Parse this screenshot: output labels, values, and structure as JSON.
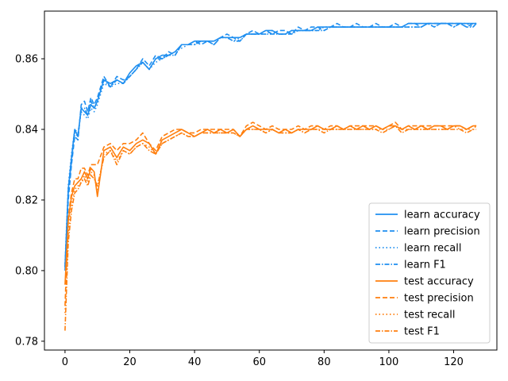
{
  "chart_data": {
    "type": "line",
    "title": "",
    "xlabel": "",
    "ylabel": "",
    "xlim": [
      -6.35,
      133.35
    ],
    "ylim": [
      0.7775,
      0.8735
    ],
    "xticks": [
      0,
      20,
      40,
      60,
      80,
      100,
      120
    ],
    "yticks": [
      0.78,
      0.8,
      0.82,
      0.84,
      0.86
    ],
    "ytick_labels": [
      "0.78",
      "0.80",
      "0.82",
      "0.84",
      "0.86"
    ],
    "grid": false,
    "legend_position": "lower-right",
    "colors": {
      "learn": "#1f8ff0",
      "test": "#ff7f0e"
    },
    "x": [
      0,
      1,
      2,
      3,
      4,
      5,
      6,
      7,
      8,
      9,
      10,
      12,
      14,
      16,
      18,
      20,
      22,
      24,
      26,
      28,
      30,
      32,
      34,
      36,
      38,
      40,
      42,
      44,
      46,
      48,
      50,
      52,
      54,
      56,
      58,
      60,
      62,
      64,
      66,
      68,
      70,
      72,
      74,
      76,
      78,
      80,
      82,
      84,
      86,
      88,
      90,
      92,
      94,
      96,
      98,
      100,
      102,
      104,
      106,
      108,
      110,
      112,
      114,
      116,
      118,
      120,
      122,
      124,
      126,
      127
    ],
    "series": [
      {
        "name": "learn accuracy",
        "color": "#1f8ff0",
        "dash": "solid",
        "values": [
          0.801,
          0.823,
          0.832,
          0.84,
          0.838,
          0.846,
          0.845,
          0.844,
          0.847,
          0.846,
          0.848,
          0.854,
          0.853,
          0.854,
          0.853,
          0.856,
          0.858,
          0.859,
          0.857,
          0.86,
          0.861,
          0.861,
          0.862,
          0.864,
          0.864,
          0.865,
          0.865,
          0.865,
          0.865,
          0.866,
          0.866,
          0.866,
          0.866,
          0.867,
          0.867,
          0.867,
          0.868,
          0.868,
          0.867,
          0.867,
          0.868,
          0.868,
          0.868,
          0.868,
          0.869,
          0.869,
          0.869,
          0.869,
          0.869,
          0.869,
          0.869,
          0.869,
          0.869,
          0.869,
          0.869,
          0.869,
          0.869,
          0.869,
          0.87,
          0.87,
          0.87,
          0.87,
          0.87,
          0.87,
          0.87,
          0.87,
          0.87,
          0.87,
          0.87,
          0.87
        ]
      },
      {
        "name": "learn precision",
        "color": "#1f8ff0",
        "dash": "6,3",
        "values": [
          0.8,
          0.82,
          0.83,
          0.838,
          0.837,
          0.847,
          0.848,
          0.845,
          0.849,
          0.847,
          0.849,
          0.855,
          0.852,
          0.855,
          0.854,
          0.855,
          0.857,
          0.86,
          0.858,
          0.861,
          0.86,
          0.862,
          0.861,
          0.864,
          0.864,
          0.865,
          0.864,
          0.865,
          0.864,
          0.866,
          0.867,
          0.866,
          0.865,
          0.867,
          0.868,
          0.867,
          0.868,
          0.867,
          0.868,
          0.868,
          0.867,
          0.869,
          0.868,
          0.869,
          0.869,
          0.868,
          0.869,
          0.87,
          0.869,
          0.869,
          0.87,
          0.869,
          0.869,
          0.87,
          0.869,
          0.869,
          0.87,
          0.869,
          0.87,
          0.87,
          0.869,
          0.87,
          0.87,
          0.87,
          0.87,
          0.87,
          0.87,
          0.869,
          0.87,
          0.87
        ]
      },
      {
        "name": "learn recall",
        "color": "#1f8ff0",
        "dash": "1.5,3",
        "values": [
          0.802,
          0.824,
          0.833,
          0.84,
          0.839,
          0.845,
          0.844,
          0.843,
          0.846,
          0.845,
          0.847,
          0.853,
          0.852,
          0.853,
          0.853,
          0.855,
          0.857,
          0.859,
          0.857,
          0.859,
          0.86,
          0.861,
          0.862,
          0.863,
          0.864,
          0.864,
          0.865,
          0.865,
          0.865,
          0.866,
          0.866,
          0.865,
          0.866,
          0.867,
          0.867,
          0.867,
          0.867,
          0.868,
          0.867,
          0.867,
          0.868,
          0.868,
          0.868,
          0.868,
          0.868,
          0.869,
          0.869,
          0.869,
          0.869,
          0.869,
          0.869,
          0.869,
          0.869,
          0.869,
          0.869,
          0.869,
          0.869,
          0.869,
          0.869,
          0.869,
          0.869,
          0.87,
          0.869,
          0.87,
          0.87,
          0.869,
          0.87,
          0.87,
          0.869,
          0.87
        ]
      },
      {
        "name": "learn F1",
        "color": "#1f8ff0",
        "dash": "6,2,1.5,2",
        "values": [
          0.801,
          0.822,
          0.831,
          0.839,
          0.838,
          0.846,
          0.846,
          0.844,
          0.848,
          0.846,
          0.848,
          0.854,
          0.852,
          0.854,
          0.853,
          0.855,
          0.857,
          0.859,
          0.857,
          0.86,
          0.86,
          0.861,
          0.861,
          0.864,
          0.864,
          0.864,
          0.865,
          0.865,
          0.864,
          0.866,
          0.866,
          0.865,
          0.865,
          0.867,
          0.867,
          0.867,
          0.867,
          0.867,
          0.867,
          0.867,
          0.867,
          0.868,
          0.868,
          0.868,
          0.868,
          0.868,
          0.869,
          0.869,
          0.869,
          0.869,
          0.869,
          0.869,
          0.869,
          0.869,
          0.869,
          0.869,
          0.869,
          0.869,
          0.869,
          0.869,
          0.869,
          0.87,
          0.869,
          0.87,
          0.87,
          0.869,
          0.87,
          0.869,
          0.869,
          0.87
        ]
      },
      {
        "name": "test accuracy",
        "color": "#ff7f0e",
        "dash": "solid",
        "values": [
          0.796,
          0.814,
          0.821,
          0.824,
          0.825,
          0.826,
          0.828,
          0.826,
          0.829,
          0.828,
          0.821,
          0.834,
          0.835,
          0.832,
          0.835,
          0.834,
          0.836,
          0.837,
          0.836,
          0.833,
          0.837,
          0.838,
          0.839,
          0.84,
          0.839,
          0.838,
          0.839,
          0.84,
          0.839,
          0.84,
          0.839,
          0.84,
          0.838,
          0.84,
          0.841,
          0.84,
          0.84,
          0.84,
          0.839,
          0.84,
          0.839,
          0.84,
          0.84,
          0.84,
          0.841,
          0.84,
          0.84,
          0.841,
          0.84,
          0.841,
          0.84,
          0.841,
          0.84,
          0.841,
          0.84,
          0.841,
          0.841,
          0.84,
          0.841,
          0.84,
          0.841,
          0.84,
          0.841,
          0.841,
          0.84,
          0.841,
          0.841,
          0.84,
          0.841,
          0.841
        ]
      },
      {
        "name": "test precision",
        "color": "#ff7f0e",
        "dash": "6,3",
        "values": [
          0.79,
          0.815,
          0.822,
          0.826,
          0.826,
          0.829,
          0.829,
          0.827,
          0.83,
          0.83,
          0.83,
          0.835,
          0.836,
          0.834,
          0.836,
          0.836,
          0.837,
          0.839,
          0.836,
          0.834,
          0.838,
          0.839,
          0.84,
          0.84,
          0.839,
          0.839,
          0.84,
          0.84,
          0.84,
          0.84,
          0.84,
          0.84,
          0.838,
          0.841,
          0.842,
          0.841,
          0.84,
          0.841,
          0.84,
          0.84,
          0.84,
          0.841,
          0.84,
          0.841,
          0.841,
          0.84,
          0.841,
          0.841,
          0.84,
          0.841,
          0.841,
          0.841,
          0.841,
          0.841,
          0.84,
          0.841,
          0.842,
          0.84,
          0.841,
          0.841,
          0.841,
          0.841,
          0.841,
          0.841,
          0.841,
          0.841,
          0.841,
          0.84,
          0.841,
          0.841
        ]
      },
      {
        "name": "test recall",
        "color": "#ff7f0e",
        "dash": "1.5,3",
        "values": [
          0.788,
          0.81,
          0.819,
          0.823,
          0.824,
          0.825,
          0.827,
          0.825,
          0.828,
          0.827,
          0.822,
          0.833,
          0.834,
          0.831,
          0.834,
          0.833,
          0.835,
          0.836,
          0.835,
          0.833,
          0.836,
          0.837,
          0.838,
          0.839,
          0.838,
          0.838,
          0.839,
          0.839,
          0.839,
          0.839,
          0.839,
          0.839,
          0.838,
          0.84,
          0.84,
          0.84,
          0.839,
          0.84,
          0.839,
          0.839,
          0.839,
          0.84,
          0.839,
          0.84,
          0.84,
          0.84,
          0.84,
          0.84,
          0.84,
          0.84,
          0.84,
          0.84,
          0.84,
          0.84,
          0.84,
          0.84,
          0.841,
          0.84,
          0.84,
          0.84,
          0.84,
          0.84,
          0.84,
          0.84,
          0.84,
          0.841,
          0.84,
          0.84,
          0.84,
          0.841
        ]
      },
      {
        "name": "test F1",
        "color": "#ff7f0e",
        "dash": "6,2,1.5,2",
        "values": [
          0.783,
          0.808,
          0.817,
          0.822,
          0.823,
          0.825,
          0.826,
          0.824,
          0.827,
          0.826,
          0.824,
          0.832,
          0.834,
          0.83,
          0.834,
          0.833,
          0.835,
          0.836,
          0.834,
          0.833,
          0.836,
          0.837,
          0.838,
          0.839,
          0.838,
          0.838,
          0.839,
          0.839,
          0.839,
          0.839,
          0.839,
          0.839,
          0.838,
          0.84,
          0.84,
          0.84,
          0.839,
          0.84,
          0.839,
          0.839,
          0.839,
          0.84,
          0.839,
          0.84,
          0.84,
          0.839,
          0.84,
          0.84,
          0.84,
          0.84,
          0.84,
          0.84,
          0.84,
          0.84,
          0.839,
          0.84,
          0.841,
          0.839,
          0.84,
          0.84,
          0.84,
          0.84,
          0.84,
          0.84,
          0.84,
          0.84,
          0.84,
          0.839,
          0.84,
          0.84
        ]
      }
    ]
  }
}
